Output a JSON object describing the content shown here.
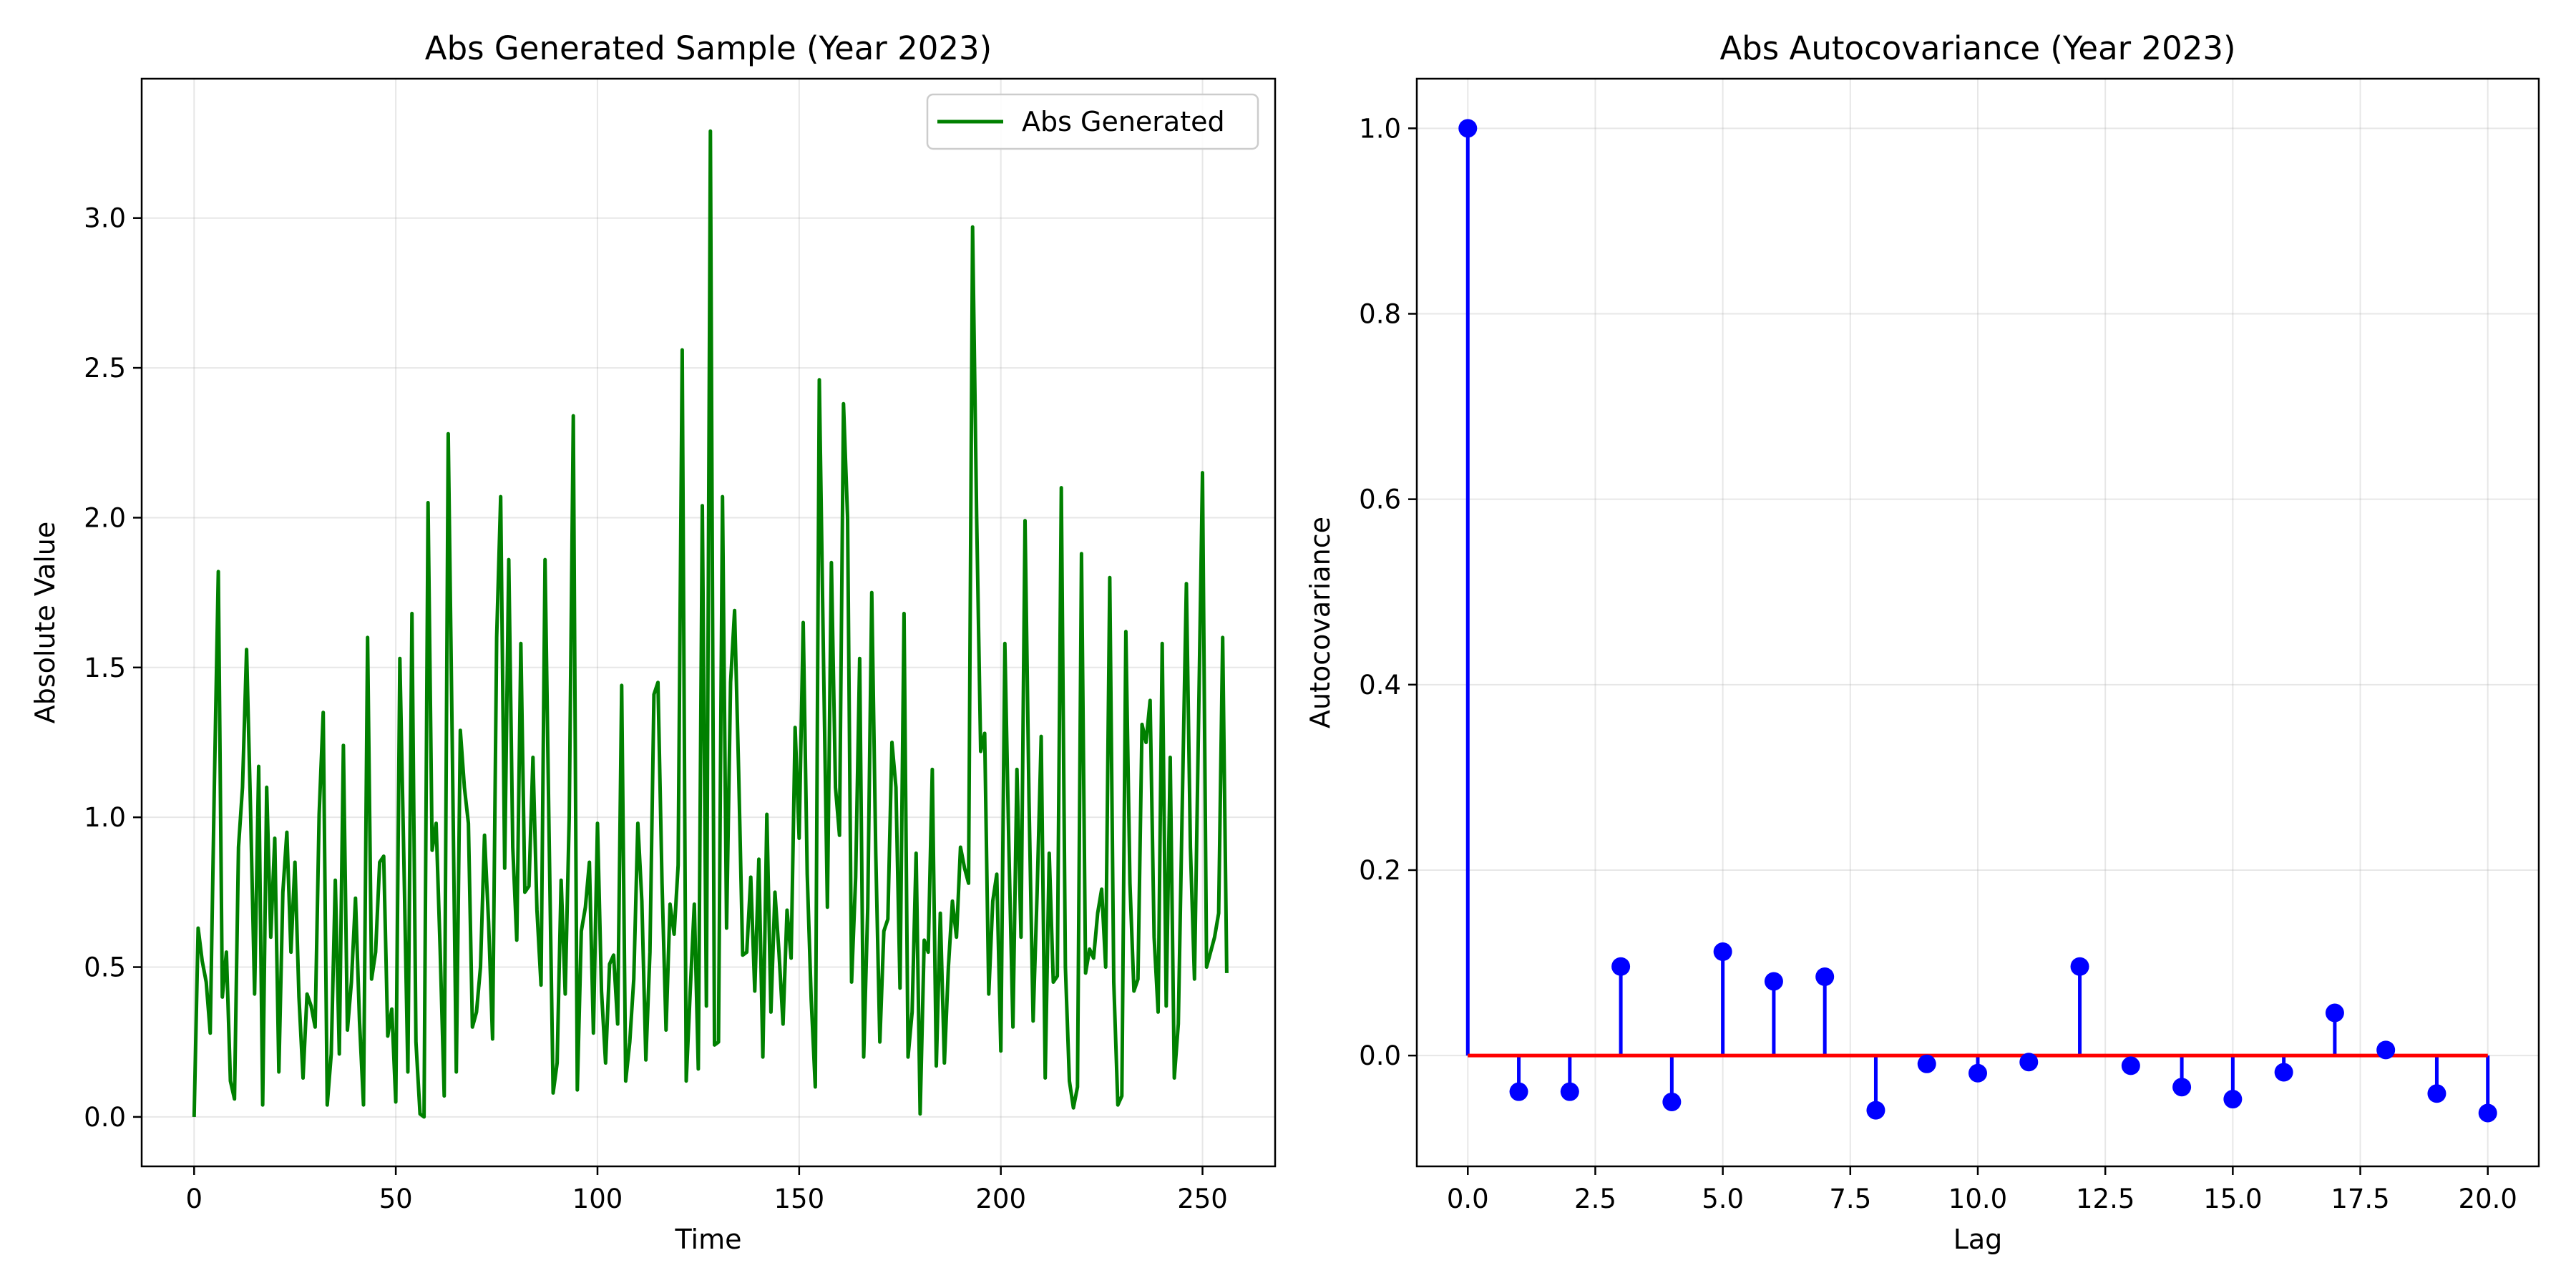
{
  "chart_data": [
    {
      "type": "line",
      "title": "Abs Generated Sample (Year 2023)",
      "xlabel": "Time",
      "ylabel": "Absolute Value",
      "xlim": [
        -13,
        268
      ],
      "ylim": [
        -0.165,
        3.465
      ],
      "xticks": [
        0,
        50,
        100,
        150,
        200,
        250
      ],
      "yticks": [
        0.0,
        0.5,
        1.0,
        1.5,
        2.0,
        2.5,
        3.0
      ],
      "xtick_labels": [
        "0",
        "50",
        "100",
        "150",
        "200",
        "250"
      ],
      "ytick_labels": [
        "0.0",
        "0.5",
        "1.0",
        "1.5",
        "2.0",
        "2.5",
        "3.0"
      ],
      "grid": true,
      "legend": "top-right",
      "series": [
        {
          "name": "Abs Generated",
          "color": "#008000",
          "x_start": 0,
          "x_step": 1,
          "values": [
            0.0,
            0.63,
            0.52,
            0.45,
            0.28,
            1.1,
            1.82,
            0.4,
            0.55,
            0.12,
            0.06,
            0.9,
            1.1,
            1.56,
            1.02,
            0.41,
            1.17,
            0.04,
            1.1,
            0.6,
            0.93,
            0.15,
            0.75,
            0.95,
            0.55,
            0.85,
            0.4,
            0.13,
            0.41,
            0.37,
            0.3,
            1.01,
            1.35,
            0.04,
            0.21,
            0.79,
            0.21,
            1.24,
            0.29,
            0.45,
            0.73,
            0.32,
            0.04,
            1.6,
            0.46,
            0.55,
            0.85,
            0.87,
            0.27,
            0.36,
            0.05,
            1.53,
            0.86,
            0.15,
            1.68,
            0.25,
            0.01,
            0.0,
            2.05,
            0.89,
            0.98,
            0.56,
            0.07,
            2.28,
            1.25,
            0.15,
            1.29,
            1.1,
            0.98,
            0.3,
            0.35,
            0.5,
            0.94,
            0.65,
            0.26,
            1.6,
            2.07,
            0.83,
            1.86,
            0.9,
            0.59,
            1.58,
            0.75,
            0.77,
            1.2,
            0.69,
            0.44,
            1.86,
            0.95,
            0.08,
            0.18,
            0.79,
            0.41,
            1.0,
            2.34,
            0.09,
            0.62,
            0.7,
            0.85,
            0.28,
            0.98,
            0.42,
            0.18,
            0.51,
            0.54,
            0.31,
            1.44,
            0.12,
            0.25,
            0.46,
            0.98,
            0.72,
            0.19,
            0.55,
            1.41,
            1.45,
            0.78,
            0.29,
            0.71,
            0.61,
            0.84,
            2.56,
            0.12,
            0.42,
            0.71,
            0.16,
            2.04,
            0.37,
            3.29,
            0.24,
            0.25,
            2.07,
            0.63,
            1.45,
            1.69,
            1.15,
            0.54,
            0.55,
            0.8,
            0.42,
            0.86,
            0.2,
            1.01,
            0.35,
            0.75,
            0.55,
            0.31,
            0.69,
            0.53,
            1.3,
            0.93,
            1.65,
            0.81,
            0.39,
            0.1,
            2.46,
            1.55,
            0.7,
            1.85,
            1.1,
            0.94,
            2.38,
            2.0,
            0.45,
            0.8,
            1.53,
            0.2,
            0.7,
            1.75,
            0.88,
            0.25,
            0.62,
            0.66,
            1.25,
            1.1,
            0.43,
            1.68,
            0.2,
            0.35,
            0.88,
            0.01,
            0.59,
            0.55,
            1.16,
            0.17,
            0.68,
            0.18,
            0.5,
            0.72,
            0.6,
            0.9,
            0.83,
            0.78,
            2.97,
            2.0,
            1.22,
            1.28,
            0.41,
            0.72,
            0.81,
            0.22,
            1.58,
            0.89,
            0.3,
            1.16,
            0.6,
            1.99,
            1.05,
            0.32,
            0.75,
            1.27,
            0.13,
            0.88,
            0.45,
            0.47,
            2.1,
            0.5,
            0.12,
            0.03,
            0.1,
            1.88,
            0.48,
            0.56,
            0.53,
            0.68,
            0.76,
            0.5,
            1.8,
            0.45,
            0.04,
            0.07,
            1.62,
            0.78,
            0.42,
            0.46,
            1.31,
            1.25,
            1.39,
            0.6,
            0.35,
            1.58,
            0.37,
            1.2,
            0.13,
            0.31,
            1.05,
            1.78,
            0.9,
            0.46,
            1.3,
            2.15,
            0.5,
            0.55,
            0.6,
            0.68,
            1.6,
            0.48
          ]
        }
      ]
    },
    {
      "type": "stem",
      "title": "Abs Autocovariance (Year 2023)",
      "xlabel": "Lag",
      "ylabel": "Autocovariance",
      "xlim": [
        -1.0,
        21.0
      ],
      "ylim": [
        -0.1195,
        1.0535
      ],
      "xticks": [
        0.0,
        2.5,
        5.0,
        7.5,
        10.0,
        12.5,
        15.0,
        17.5,
        20.0
      ],
      "yticks": [
        0.0,
        0.2,
        0.4,
        0.6,
        0.8,
        1.0
      ],
      "xtick_labels": [
        "0.0",
        "2.5",
        "5.0",
        "7.5",
        "10.0",
        "12.5",
        "15.0",
        "17.5",
        "20.0"
      ],
      "ytick_labels": [
        "0.0",
        "0.2",
        "0.4",
        "0.6",
        "0.8",
        "1.0"
      ],
      "grid": true,
      "stem_color": "#0000ff",
      "marker_color": "#0000ff",
      "baseline_color": "#ff0000",
      "x": [
        0,
        1,
        2,
        3,
        4,
        5,
        6,
        7,
        8,
        9,
        10,
        11,
        12,
        13,
        14,
        15,
        16,
        17,
        18,
        19,
        20
      ],
      "values": [
        1.0,
        -0.039,
        -0.039,
        0.096,
        -0.05,
        0.112,
        0.08,
        0.085,
        -0.059,
        -0.009,
        -0.019,
        -0.007,
        0.096,
        -0.011,
        -0.034,
        -0.047,
        -0.018,
        0.046,
        0.006,
        -0.041,
        -0.062
      ]
    }
  ]
}
